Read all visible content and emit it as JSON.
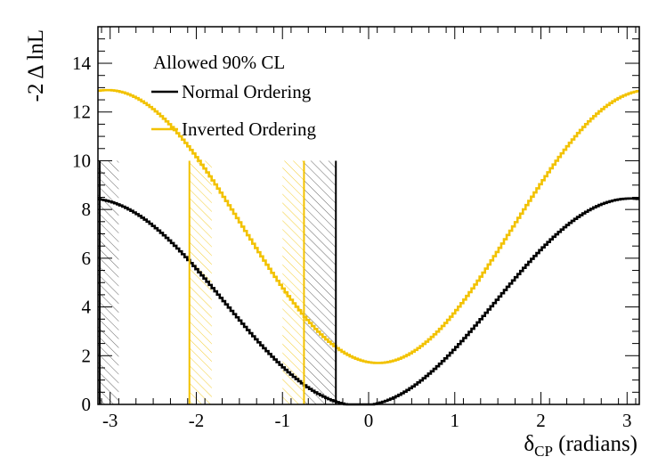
{
  "chart_data": {
    "type": "line",
    "title": "",
    "xlabel": "δ",
    "xlabel_sub": "CP",
    "xlabel_suffix": " (radians)",
    "ylabel": "-2 Δ lnL",
    "xlim": [
      -3.1416,
      3.1416
    ],
    "ylim": [
      0,
      15.5
    ],
    "x_ticks": [
      -3,
      -2,
      -1,
      0,
      1,
      2,
      3
    ],
    "y_ticks": [
      0,
      2,
      4,
      6,
      8,
      10,
      12,
      14
    ],
    "legend": {
      "title": "Allowed 90% CL",
      "placement": "top-left",
      "entries": [
        "Normal Ordering",
        "Inverted Ordering"
      ]
    },
    "series": [
      {
        "name": "Normal Ordering",
        "color": "#000000",
        "model": {
          "offset": 4.2,
          "amplitude": 4.25,
          "phase": 1.47
        },
        "allowed_region": [
          [
            -3.1416,
            -2.9
          ],
          [
            -0.75,
            -0.38
          ]
        ],
        "boundary_x": -0.38
      },
      {
        "name": "Inverted Ordering",
        "color": "#f2c200",
        "model": {
          "offset": 7.3,
          "amplitude": 5.6,
          "phase": 1.68
        },
        "allowed_region": [
          [
            -2.08,
            -1.82
          ],
          [
            -1.0,
            -0.75
          ]
        ],
        "boundary_x": [
          -2.08,
          -0.75
        ]
      }
    ]
  }
}
